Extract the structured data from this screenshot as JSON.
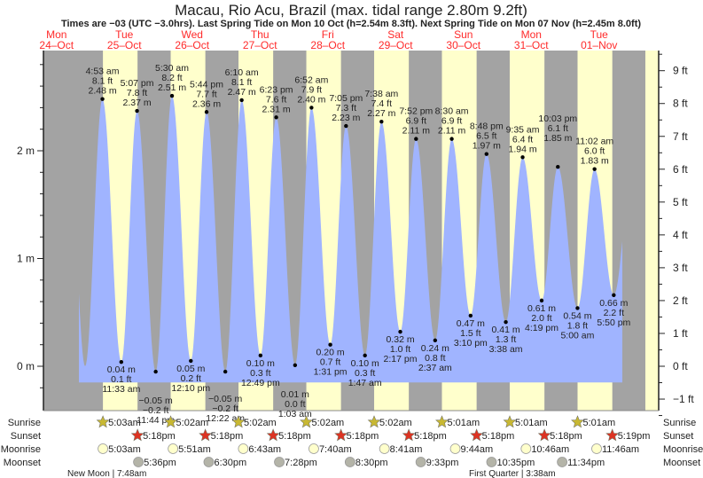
{
  "chart_data": {
    "type": "area",
    "title": "Macau, Rio Acu, Brazil (max. tidal range 2.80m 9.2ft)",
    "subtitle": "Times are −03 (UTC −3.0hrs). Last Spring Tide on Mon 10 Oct (h=2.54m 8.3ft). Next Spring Tide on Mon 07 Nov (h=2.45m 8.0ft)",
    "days": [
      {
        "dow": "Mon",
        "date": "24–Oct"
      },
      {
        "dow": "Tue",
        "date": "25–Oct"
      },
      {
        "dow": "Wed",
        "date": "26–Oct"
      },
      {
        "dow": "Thu",
        "date": "27–Oct"
      },
      {
        "dow": "Fri",
        "date": "28–Oct"
      },
      {
        "dow": "Sat",
        "date": "29–Oct"
      },
      {
        "dow": "Sun",
        "date": "30–Oct"
      },
      {
        "dow": "Mon",
        "date": "31–Oct"
      },
      {
        "dow": "Tue",
        "date": "01–Nov"
      }
    ],
    "y_left": {
      "unit": "m",
      "ylim": [
        -0.25,
        2.95
      ],
      "ticks": [
        "0 m",
        "1 m",
        "2 m"
      ],
      "tick_values": [
        0,
        1,
        2
      ]
    },
    "y_right": {
      "unit": "ft",
      "ticks": [
        "−1 ft",
        "0 ft",
        "1 ft",
        "2 ft",
        "3 ft",
        "4 ft",
        "5 ft",
        "6 ft",
        "7 ft",
        "8 ft",
        "9 ft"
      ],
      "tick_values": [
        -1,
        0,
        1,
        2,
        3,
        4,
        5,
        6,
        7,
        8,
        9
      ]
    },
    "tides": [
      {
        "day": 1,
        "type": "high",
        "time": "4:53 am",
        "ft": "8.1 ft",
        "m": "2.48 m",
        "value": 2.48
      },
      {
        "day": 1,
        "type": "low",
        "time": "11:33 am",
        "ft": "0.1 ft",
        "m": "0.04 m",
        "value": 0.04
      },
      {
        "day": 1,
        "type": "high",
        "time": "5:07 pm",
        "ft": "7.8 ft",
        "m": "2.37 m",
        "value": 2.37
      },
      {
        "day": 1,
        "type": "low",
        "time": "11:44 pm",
        "ft": "−0.2 ft",
        "m": "−0.05 m",
        "value": -0.05
      },
      {
        "day": 2,
        "type": "high",
        "time": "5:30 am",
        "ft": "8.2 ft",
        "m": "2.51 m",
        "value": 2.51
      },
      {
        "day": 2,
        "type": "low",
        "time": "12:10 pm",
        "ft": "0.2 ft",
        "m": "0.05 m",
        "value": 0.05
      },
      {
        "day": 2,
        "type": "high",
        "time": "5:44 pm",
        "ft": "7.7 ft",
        "m": "2.36 m",
        "value": 2.36
      },
      {
        "day": 3,
        "type": "low",
        "time": "12:22 am",
        "ft": "−0.2 ft",
        "m": "−0.05 m",
        "value": -0.05
      },
      {
        "day": 3,
        "type": "high",
        "time": "6:10 am",
        "ft": "8.1 ft",
        "m": "2.47 m",
        "value": 2.47
      },
      {
        "day": 3,
        "type": "low",
        "time": "12:49 pm",
        "ft": "0.3 ft",
        "m": "0.10 m",
        "value": 0.1
      },
      {
        "day": 3,
        "type": "high",
        "time": "6:23 pm",
        "ft": "7.6 ft",
        "m": "2.31 m",
        "value": 2.31
      },
      {
        "day": 4,
        "type": "low",
        "time": "1:03 am",
        "ft": "0.0 ft",
        "m": "0.01 m",
        "value": 0.01
      },
      {
        "day": 4,
        "type": "high",
        "time": "6:52 am",
        "ft": "7.9 ft",
        "m": "2.40 m",
        "value": 2.4
      },
      {
        "day": 4,
        "type": "low",
        "time": "1:31 pm",
        "ft": "0.7 ft",
        "m": "0.20 m",
        "value": 0.2
      },
      {
        "day": 4,
        "type": "high",
        "time": "7:05 pm",
        "ft": "7.3 ft",
        "m": "2.23 m",
        "value": 2.23
      },
      {
        "day": 5,
        "type": "low",
        "time": "1:47 am",
        "ft": "0.3 ft",
        "m": "0.10 m",
        "value": 0.1
      },
      {
        "day": 5,
        "type": "high",
        "time": "7:38 am",
        "ft": "7.4 ft",
        "m": "2.27 m",
        "value": 2.27
      },
      {
        "day": 5,
        "type": "low",
        "time": "2:17 pm",
        "ft": "1.0 ft",
        "m": "0.32 m",
        "value": 0.32
      },
      {
        "day": 5,
        "type": "high",
        "time": "7:52 pm",
        "ft": "6.9 ft",
        "m": "2.11 m",
        "value": 2.11
      },
      {
        "day": 6,
        "type": "low",
        "time": "2:37 am",
        "ft": "0.8 ft",
        "m": "0.24 m",
        "value": 0.24
      },
      {
        "day": 6,
        "type": "high",
        "time": "8:30 am",
        "ft": "6.9 ft",
        "m": "2.11 m",
        "value": 2.11
      },
      {
        "day": 6,
        "type": "low",
        "time": "3:10 pm",
        "ft": "1.5 ft",
        "m": "0.47 m",
        "value": 0.47
      },
      {
        "day": 6,
        "type": "high",
        "time": "8:48 pm",
        "ft": "6.5 ft",
        "m": "1.97 m",
        "value": 1.97
      },
      {
        "day": 7,
        "type": "low",
        "time": "3:38 am",
        "ft": "1.3 ft",
        "m": "0.41 m",
        "value": 0.41
      },
      {
        "day": 7,
        "type": "high",
        "time": "9:35 am",
        "ft": "6.4 ft",
        "m": "1.94 m",
        "value": 1.94
      },
      {
        "day": 7,
        "type": "low",
        "time": "4:19 pm",
        "ft": "2.0 ft",
        "m": "0.61 m",
        "value": 0.61
      },
      {
        "day": 7,
        "type": "high",
        "time": "10:03 pm",
        "ft": "6.1 ft",
        "m": "1.85 m",
        "value": 1.85
      },
      {
        "day": 8,
        "type": "low",
        "time": "5:00 am",
        "ft": "1.8 ft",
        "m": "0.54 m",
        "value": 0.54
      },
      {
        "day": 8,
        "type": "high",
        "time": "11:02 am",
        "ft": "6.0 ft",
        "m": "1.83 m",
        "value": 1.83
      },
      {
        "day": 8,
        "type": "low",
        "time": "5:50 pm",
        "ft": "2.2 ft",
        "m": "0.66 m",
        "value": 0.66
      }
    ],
    "unlabeled_extrema": [
      {
        "day": 0,
        "hour": 16.7,
        "value": 2.3
      },
      {
        "day": 0,
        "hour": 22.75,
        "value": 0.0
      },
      {
        "day": 9,
        "hour": 0.4,
        "value": 1.8
      }
    ],
    "rows": {
      "sunrise": {
        "label": "Sunrise",
        "items": [
          {
            "day": 1,
            "time": "5:03am"
          },
          {
            "day": 2,
            "time": "5:02am"
          },
          {
            "day": 3,
            "time": "5:02am"
          },
          {
            "day": 4,
            "time": "5:02am"
          },
          {
            "day": 5,
            "time": "5:02am"
          },
          {
            "day": 6,
            "time": "5:01am"
          },
          {
            "day": 7,
            "time": "5:01am"
          },
          {
            "day": 8,
            "time": "5:01am"
          }
        ]
      },
      "sunset": {
        "label": "Sunset",
        "items": [
          {
            "day": 1,
            "time": "5:18pm"
          },
          {
            "day": 2,
            "time": "5:18pm"
          },
          {
            "day": 3,
            "time": "5:18pm"
          },
          {
            "day": 4,
            "time": "5:18pm"
          },
          {
            "day": 5,
            "time": "5:18pm"
          },
          {
            "day": 6,
            "time": "5:18pm"
          },
          {
            "day": 7,
            "time": "5:18pm"
          },
          {
            "day": 8,
            "time": "5:19pm"
          }
        ]
      },
      "moonrise": {
        "label": "Moonrise",
        "items": [
          {
            "day": 1,
            "time": "5:03am"
          },
          {
            "day": 2,
            "time": "5:51am"
          },
          {
            "day": 3,
            "time": "6:43am"
          },
          {
            "day": 4,
            "time": "7:40am"
          },
          {
            "day": 5,
            "time": "8:41am"
          },
          {
            "day": 6,
            "time": "9:44am"
          },
          {
            "day": 7,
            "time": "10:46am"
          },
          {
            "day": 8,
            "time": "11:46am"
          }
        ]
      },
      "moonset": {
        "label": "Moonset",
        "items": [
          {
            "day": 1,
            "time": "5:36pm"
          },
          {
            "day": 2,
            "time": "6:30pm"
          },
          {
            "day": 3,
            "time": "7:28pm"
          },
          {
            "day": 4,
            "time": "8:30pm"
          },
          {
            "day": 5,
            "time": "9:33pm"
          },
          {
            "day": 6,
            "time": "10:35pm"
          },
          {
            "day": 7,
            "time": "11:34pm"
          }
        ]
      }
    },
    "moon_phases": [
      {
        "text": "New Moon | 7:48am",
        "day": 1
      },
      {
        "text": "First Quarter | 3:38am",
        "day": 7
      }
    ],
    "colors": {
      "night": "#a3a3a3",
      "day": "#ffffcc",
      "water": "#a0b4ff",
      "day_label": "#ff2a2a",
      "sunrise": "#c8b832",
      "sunset": "#dd3322",
      "moonrise": "#ffffcc",
      "moonset": "#b4b4a8"
    }
  }
}
